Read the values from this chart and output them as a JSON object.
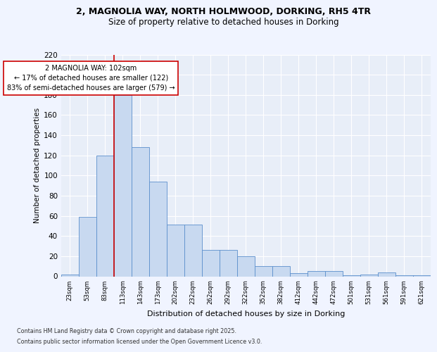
{
  "title_line1": "2, MAGNOLIA WAY, NORTH HOLMWOOD, DORKING, RH5 4TR",
  "title_line2": "Size of property relative to detached houses in Dorking",
  "xlabel": "Distribution of detached houses by size in Dorking",
  "ylabel": "Number of detached properties",
  "bin_labels": [
    "23sqm",
    "53sqm",
    "83sqm",
    "113sqm",
    "143sqm",
    "173sqm",
    "202sqm",
    "232sqm",
    "262sqm",
    "292sqm",
    "322sqm",
    "352sqm",
    "382sqm",
    "412sqm",
    "442sqm",
    "472sqm",
    "501sqm",
    "531sqm",
    "561sqm",
    "591sqm",
    "621sqm"
  ],
  "bar_values": [
    2,
    59,
    120,
    180,
    128,
    94,
    51,
    51,
    26,
    26,
    20,
    10,
    10,
    3,
    5,
    5,
    1,
    2,
    4,
    1,
    1
  ],
  "bar_color": "#c8d9f0",
  "bar_edge_color": "#5b8fcc",
  "red_line_x": 2.5,
  "annotation_line1": "2 MAGNOLIA WAY: 102sqm",
  "annotation_line2": "← 17% of detached houses are smaller (122)",
  "annotation_line3": "83% of semi-detached houses are larger (579) →",
  "annotation_box_color": "#ffffff",
  "annotation_box_edge_color": "#cc0000",
  "red_line_color": "#cc0000",
  "ylim": [
    0,
    220
  ],
  "yticks": [
    0,
    20,
    40,
    60,
    80,
    100,
    120,
    140,
    160,
    180,
    200,
    220
  ],
  "background_color": "#e8eef8",
  "fig_background_color": "#f0f4ff",
  "footer_line1": "Contains HM Land Registry data © Crown copyright and database right 2025.",
  "footer_line2": "Contains public sector information licensed under the Open Government Licence v3.0."
}
